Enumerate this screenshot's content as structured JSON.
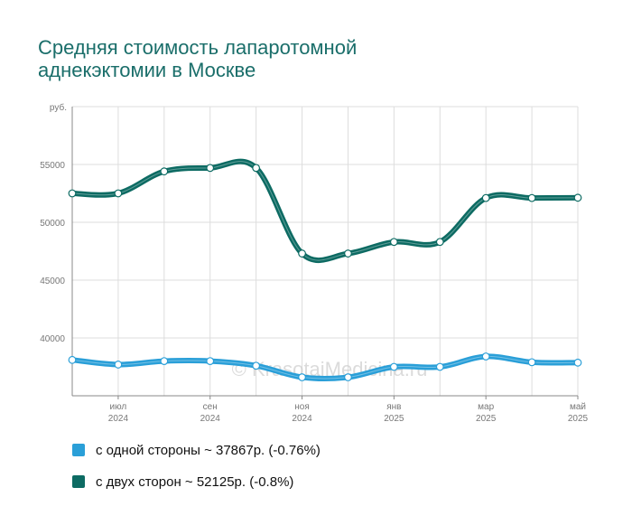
{
  "title_lines": [
    "Средняя стоимость лапаротомной",
    "аднекэктомии в Москве"
  ],
  "watermark": "© KrasotaiMedicina.ru",
  "chart_data": {
    "type": "line",
    "title": "Средняя стоимость лапаротомной аднекэктомии в Москве",
    "y_unit": "руб.",
    "ylim": [
      35000,
      60000
    ],
    "y_ticks": [
      40000,
      45000,
      50000,
      55000
    ],
    "y_tick_labels": [
      "40000",
      "45000",
      "50000",
      "55000"
    ],
    "x_tick_labels": [
      {
        "month": "июл",
        "year": "2024",
        "index": 1
      },
      {
        "month": "сен",
        "year": "2024",
        "index": 3
      },
      {
        "month": "ноя",
        "year": "2024",
        "index": 5
      },
      {
        "month": "янв",
        "year": "2025",
        "index": 7
      },
      {
        "month": "мар",
        "year": "2025",
        "index": 9
      },
      {
        "month": "май",
        "year": "2025",
        "index": 11
      }
    ],
    "categories": [
      "2024-06",
      "2024-07",
      "2024-08",
      "2024-09",
      "2024-10",
      "2024-11",
      "2024-12",
      "2025-01",
      "2025-02",
      "2025-03",
      "2025-04",
      "2025-05"
    ],
    "grid": true,
    "series": [
      {
        "name": "с одной стороны",
        "color": "#2a9fd8",
        "values": [
          38100,
          37700,
          38000,
          38000,
          37600,
          36600,
          36600,
          37500,
          37500,
          38400,
          37900,
          37867
        ]
      },
      {
        "name": "с двух сторон",
        "color": "#0d6b63",
        "values": [
          52500,
          52500,
          54400,
          54700,
          54700,
          47300,
          47300,
          48300,
          48300,
          52100,
          52100,
          52125
        ]
      }
    ],
    "legend": [
      {
        "label": "с одной стороны ~ 37867р. (-0.76%)",
        "color": "#2a9fd8"
      },
      {
        "label": "с двух сторон ~ 52125р. (-0.8%)",
        "color": "#0d6b63"
      }
    ]
  }
}
